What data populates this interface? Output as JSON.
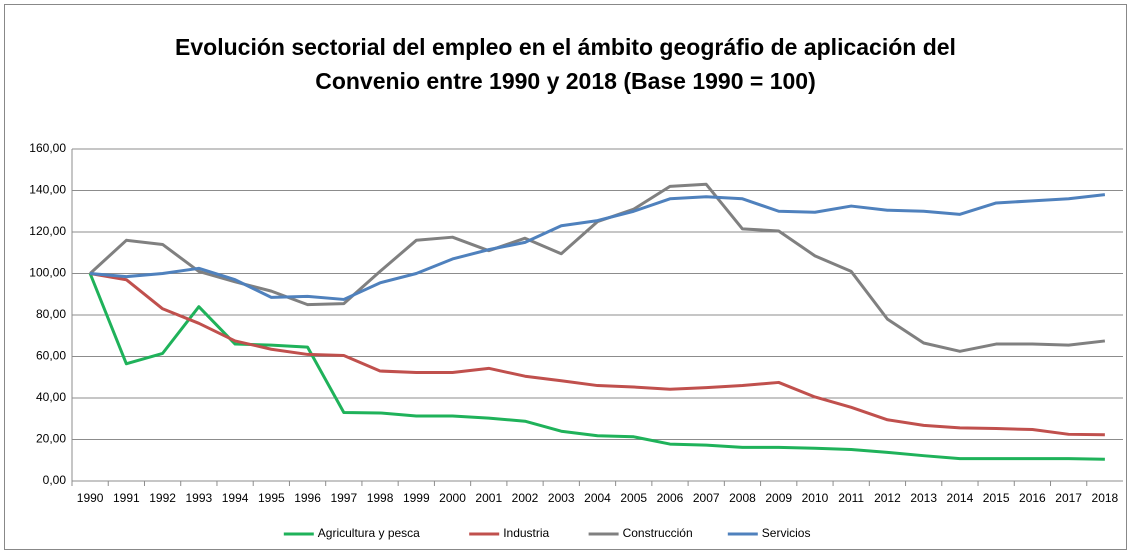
{
  "chart_data": {
    "type": "line",
    "title": "Evolución sectorial del empleo en el ámbito geográfio de aplicación del Convenio entre 1990 y 2018 (Base 1990 = 100)",
    "categories": [
      "1990",
      "1991",
      "1992",
      "1993",
      "1994",
      "1995",
      "1996",
      "1997",
      "1998",
      "1999",
      "2000",
      "2001",
      "2002",
      "2003",
      "2004",
      "2005",
      "2006",
      "2007",
      "2008",
      "2009",
      "2010",
      "2011",
      "2012",
      "2013",
      "2014",
      "2015",
      "2016",
      "2017",
      "2018"
    ],
    "series": [
      {
        "name": "Agricultura y pesca",
        "color": "#1fb25a",
        "values": [
          100,
          56.5,
          61.5,
          84,
          66,
          65.5,
          64.5,
          33,
          32.8,
          31.3,
          31.3,
          30.3,
          28.8,
          24,
          21.8,
          21.3,
          17.8,
          17.3,
          16.2,
          16.2,
          15.8,
          15.2,
          13.8,
          12.2,
          10.8,
          10.8,
          10.8,
          10.8,
          10.5
        ]
      },
      {
        "name": "Industria",
        "color": "#c0504d",
        "values": [
          100,
          97,
          83,
          76,
          67.5,
          63.5,
          61,
          60.5,
          53,
          52.3,
          52.3,
          54.3,
          50.5,
          48.3,
          46,
          45.3,
          44.2,
          45,
          46,
          47.5,
          40.5,
          35.5,
          29.5,
          26.8,
          25.6,
          25.3,
          24.8,
          22.5,
          22.3
        ]
      },
      {
        "name": "Construcción",
        "color": "#808080",
        "values": [
          100,
          116,
          114,
          101,
          96,
          91.5,
          85,
          85.5,
          101,
          116,
          117.5,
          111,
          117,
          109.5,
          125,
          131,
          142,
          143,
          121.5,
          120.5,
          108.5,
          101,
          78,
          66.5,
          62.5,
          66,
          66,
          65.5,
          67.5
        ]
      },
      {
        "name": "Servicios",
        "color": "#4f81bd",
        "values": [
          100,
          98.5,
          100,
          102.5,
          97,
          88.5,
          89,
          87.5,
          95.5,
          100,
          107,
          111.5,
          115,
          123,
          125.5,
          130,
          136,
          137,
          136,
          130,
          129.5,
          132.5,
          130.5,
          130,
          128.5,
          134,
          135,
          136,
          138
        ]
      }
    ],
    "ylim": [
      0,
      160
    ],
    "yticks": [
      {
        "value": 0,
        "label": "0,00"
      },
      {
        "value": 20,
        "label": "20,00"
      },
      {
        "value": 40,
        "label": "40,00"
      },
      {
        "value": 60,
        "label": "60,00"
      },
      {
        "value": 80,
        "label": "80,00"
      },
      {
        "value": 100,
        "label": "100,00"
      },
      {
        "value": 120,
        "label": "120,00"
      },
      {
        "value": 140,
        "label": "140,00"
      },
      {
        "value": 160,
        "label": "160,00"
      }
    ],
    "grid": true,
    "legend": "bottom"
  }
}
